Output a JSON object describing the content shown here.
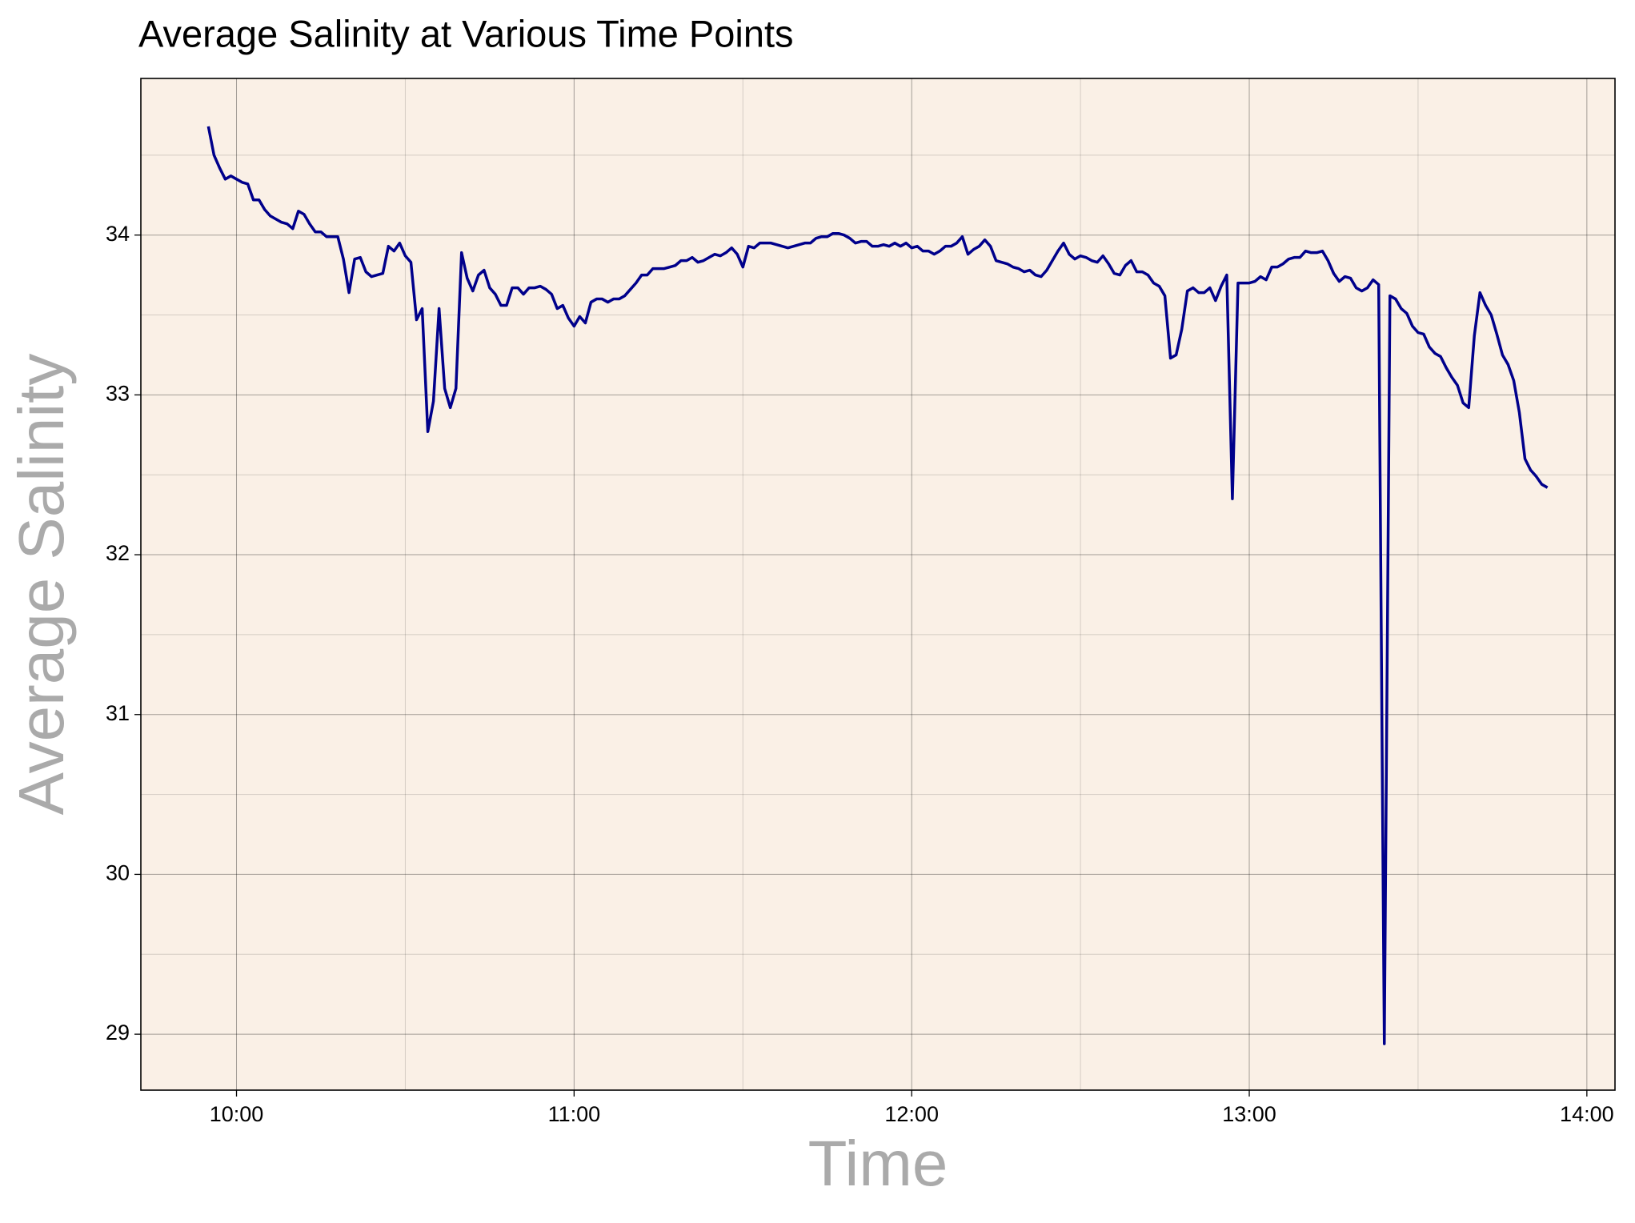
{
  "chart_data": {
    "type": "line",
    "title": "Average Salinity at Various Time Points",
    "xlabel": "Time",
    "ylabel": "Average Salinity",
    "color": "#00008b",
    "background": "#faf0e6",
    "grid": true,
    "xlim": [
      "09:43",
      "14:05"
    ],
    "xticks": [
      "10:00",
      "11:00",
      "12:00",
      "13:00",
      "14:00"
    ],
    "x_minor_ticks": [
      "10:30",
      "11:30",
      "12:30",
      "13:30"
    ],
    "ylim": [
      28.65,
      34.98
    ],
    "yticks": [
      29,
      30,
      31,
      32,
      33,
      34
    ],
    "y_minor_ticks": [
      29.5,
      30.5,
      31.5,
      32.5,
      33.5,
      34.5
    ],
    "x": [
      "09:55",
      "09:56",
      "09:57",
      "09:58",
      "09:59",
      "10:00",
      "10:01",
      "10:02",
      "10:03",
      "10:04",
      "10:05",
      "10:06",
      "10:07",
      "10:08",
      "10:09",
      "10:10",
      "10:11",
      "10:12",
      "10:13",
      "10:14",
      "10:15",
      "10:16",
      "10:17",
      "10:18",
      "10:19",
      "10:20",
      "10:21",
      "10:22",
      "10:23",
      "10:24",
      "10:25",
      "10:26",
      "10:27",
      "10:28",
      "10:29",
      "10:30",
      "10:31",
      "10:32",
      "10:33",
      "10:34",
      "10:35",
      "10:36",
      "10:37",
      "10:38",
      "10:39",
      "10:40",
      "10:41",
      "10:42",
      "10:43",
      "10:44",
      "10:45",
      "10:46",
      "10:47",
      "10:48",
      "10:49",
      "10:50",
      "10:51",
      "10:52",
      "10:53",
      "10:54",
      "10:55",
      "10:56",
      "10:57",
      "10:58",
      "10:59",
      "11:00",
      "11:01",
      "11:02",
      "11:03",
      "11:04",
      "11:05",
      "11:06",
      "11:07",
      "11:08",
      "11:09",
      "11:10",
      "11:11",
      "11:12",
      "11:13",
      "11:14",
      "11:15",
      "11:16",
      "11:17",
      "11:18",
      "11:19",
      "11:20",
      "11:21",
      "11:22",
      "11:23",
      "11:24",
      "11:25",
      "11:26",
      "11:27",
      "11:28",
      "11:29",
      "11:30",
      "11:31",
      "11:32",
      "11:33",
      "11:34",
      "11:35",
      "11:36",
      "11:37",
      "11:38",
      "11:39",
      "11:40",
      "11:41",
      "11:42",
      "11:43",
      "11:44",
      "11:45",
      "11:46",
      "11:47",
      "11:48",
      "11:49",
      "11:50",
      "11:51",
      "11:52",
      "11:53",
      "11:54",
      "11:55",
      "11:56",
      "11:57",
      "11:58",
      "11:59",
      "12:00",
      "12:01",
      "12:02",
      "12:03",
      "12:04",
      "12:05",
      "12:06",
      "12:07",
      "12:08",
      "12:09",
      "12:10",
      "12:11",
      "12:12",
      "12:13",
      "12:14",
      "12:15",
      "12:16",
      "12:17",
      "12:18",
      "12:19",
      "12:20",
      "12:21",
      "12:22",
      "12:23",
      "12:24",
      "12:25",
      "12:26",
      "12:27",
      "12:28",
      "12:29",
      "12:30",
      "12:31",
      "12:32",
      "12:33",
      "12:34",
      "12:35",
      "12:36",
      "12:37",
      "12:38",
      "12:39",
      "12:40",
      "12:41",
      "12:42",
      "12:43",
      "12:44",
      "12:45",
      "12:46",
      "12:47",
      "12:48",
      "12:49",
      "12:50",
      "12:51",
      "12:52",
      "12:53",
      "12:54",
      "12:55",
      "12:56",
      "12:57",
      "12:58",
      "12:59",
      "13:00",
      "13:01",
      "13:02",
      "13:03",
      "13:04",
      "13:05",
      "13:06",
      "13:07",
      "13:08",
      "13:09",
      "13:10",
      "13:11",
      "13:12",
      "13:13",
      "13:14",
      "13:15",
      "13:16",
      "13:17",
      "13:18",
      "13:19",
      "13:20",
      "13:21",
      "13:22",
      "13:23",
      "13:24",
      "13:25",
      "13:26",
      "13:27",
      "13:28",
      "13:29",
      "13:30",
      "13:31",
      "13:32",
      "13:33",
      "13:34",
      "13:35",
      "13:36",
      "13:37",
      "13:38",
      "13:39",
      "13:40",
      "13:41",
      "13:42",
      "13:43",
      "13:44",
      "13:45",
      "13:46",
      "13:47",
      "13:48",
      "13:49",
      "13:50",
      "13:51",
      "13:52",
      "13:53"
    ],
    "values": [
      34.68,
      34.5,
      34.42,
      34.35,
      34.37,
      34.35,
      34.33,
      34.32,
      34.22,
      34.22,
      34.16,
      34.12,
      34.1,
      34.08,
      34.07,
      34.04,
      34.15,
      34.13,
      34.07,
      34.02,
      34.02,
      33.99,
      33.99,
      33.99,
      33.85,
      33.64,
      33.85,
      33.86,
      33.77,
      33.74,
      33.75,
      33.76,
      33.93,
      33.9,
      33.95,
      33.87,
      33.83,
      33.47,
      33.54,
      32.77,
      32.96,
      33.54,
      33.04,
      32.92,
      33.04,
      33.89,
      33.73,
      33.65,
      33.75,
      33.78,
      33.67,
      33.63,
      33.56,
      33.56,
      33.67,
      33.67,
      33.63,
      33.67,
      33.67,
      33.68,
      33.66,
      33.63,
      33.54,
      33.56,
      33.48,
      33.43,
      33.49,
      33.45,
      33.58,
      33.6,
      33.6,
      33.58,
      33.6,
      33.6,
      33.62,
      33.66,
      33.7,
      33.75,
      33.75,
      33.79,
      33.79,
      33.79,
      33.8,
      33.81,
      33.84,
      33.84,
      33.86,
      33.83,
      33.84,
      33.86,
      33.88,
      33.87,
      33.89,
      33.92,
      33.88,
      33.8,
      33.93,
      33.92,
      33.95,
      33.95,
      33.95,
      33.94,
      33.93,
      33.92,
      33.93,
      33.94,
      33.95,
      33.95,
      33.98,
      33.99,
      33.99,
      34.01,
      34.01,
      34.0,
      33.98,
      33.95,
      33.96,
      33.96,
      33.93,
      33.93,
      33.94,
      33.93,
      33.95,
      33.93,
      33.95,
      33.92,
      33.93,
      33.9,
      33.9,
      33.88,
      33.9,
      33.93,
      33.93,
      33.95,
      33.99,
      33.88,
      33.91,
      33.93,
      33.97,
      33.93,
      33.84,
      33.83,
      33.82,
      33.8,
      33.79,
      33.77,
      33.78,
      33.75,
      33.74,
      33.78,
      33.84,
      33.9,
      33.95,
      33.88,
      33.85,
      33.87,
      33.86,
      33.84,
      33.83,
      33.87,
      33.82,
      33.76,
      33.75,
      33.81,
      33.84,
      33.77,
      33.77,
      33.75,
      33.7,
      33.68,
      33.62,
      33.23,
      33.25,
      33.41,
      33.65,
      33.67,
      33.64,
      33.64,
      33.67,
      33.59,
      33.68,
      33.75,
      32.35,
      33.7,
      33.7,
      33.7,
      33.71,
      33.74,
      33.72,
      33.8,
      33.8,
      33.82,
      33.85,
      33.86,
      33.86,
      33.9,
      33.89,
      33.89,
      33.9,
      33.84,
      33.76,
      33.71,
      33.74,
      33.73,
      33.67,
      33.65,
      33.67,
      33.72,
      33.69,
      28.94,
      33.62,
      33.6,
      33.54,
      33.51,
      33.43,
      33.39,
      33.38,
      33.3,
      33.26,
      33.24,
      33.17,
      33.11,
      33.06,
      32.95,
      32.92,
      33.37,
      33.64,
      33.56,
      33.5,
      33.38,
      33.25,
      33.19,
      33.09,
      32.89,
      32.6,
      32.53,
      32.49,
      32.44,
      32.42
    ]
  }
}
